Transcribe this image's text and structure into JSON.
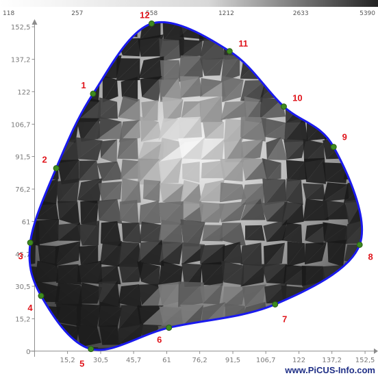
{
  "chart_data": {
    "type": "scatter",
    "title": "",
    "xlabel": "",
    "ylabel": "",
    "xlim": [
      -3,
      155
    ],
    "ylim": [
      -2,
      158
    ],
    "x_ticks": [
      {
        "value": 0,
        "label": "0"
      },
      {
        "value": 15.2,
        "label": "15,2"
      },
      {
        "value": 30.5,
        "label": "30,5"
      },
      {
        "value": 45.7,
        "label": "45,7"
      },
      {
        "value": 61,
        "label": "61"
      },
      {
        "value": 76.2,
        "label": "76,2"
      },
      {
        "value": 91.5,
        "label": "91,5"
      },
      {
        "value": 106.7,
        "label": "106,7"
      },
      {
        "value": 122,
        "label": "122"
      },
      {
        "value": 137.2,
        "label": "137,2"
      },
      {
        "value": 152.5,
        "label": "152,5"
      }
    ],
    "y_ticks": [
      {
        "value": 0,
        "label": "0"
      },
      {
        "value": 15.2,
        "label": "15,2"
      },
      {
        "value": 30.5,
        "label": "30,5"
      },
      {
        "value": 45.7,
        "label": "45,7"
      },
      {
        "value": 61,
        "label": "61"
      },
      {
        "value": 76.2,
        "label": "76,2"
      },
      {
        "value": 91.5,
        "label": "91,5"
      },
      {
        "value": 106.7,
        "label": "106,7"
      },
      {
        "value": 122,
        "label": "122"
      },
      {
        "value": 137.2,
        "label": "137,2"
      },
      {
        "value": 152.5,
        "label": "152,5"
      }
    ],
    "color_scale": {
      "labels": [
        "118",
        "257",
        "558",
        "1212",
        "2633",
        "5390"
      ],
      "low_color": "#ffffff",
      "high_color": "#1a1a1a"
    },
    "points": [
      {
        "label": "1",
        "x": 27,
        "y": 121
      },
      {
        "label": "2",
        "x": 10,
        "y": 86
      },
      {
        "label": "3",
        "x": -2,
        "y": 51
      },
      {
        "label": "4",
        "x": 3,
        "y": 26
      },
      {
        "label": "5",
        "x": 26,
        "y": 1
      },
      {
        "label": "6",
        "x": 62,
        "y": 11
      },
      {
        "label": "7",
        "x": 111,
        "y": 22
      },
      {
        "label": "8",
        "x": 150,
        "y": 50
      },
      {
        "label": "9",
        "x": 138,
        "y": 96
      },
      {
        "label": "10",
        "x": 115,
        "y": 115
      },
      {
        "label": "11",
        "x": 90,
        "y": 141
      },
      {
        "label": "12",
        "x": 54,
        "y": 154
      }
    ],
    "grid": false,
    "boundary_color": "#1a1aee",
    "point_color": "#3e8a1f",
    "label_color": "#e0141b"
  },
  "watermark": "www.PiCUS-Info.com"
}
